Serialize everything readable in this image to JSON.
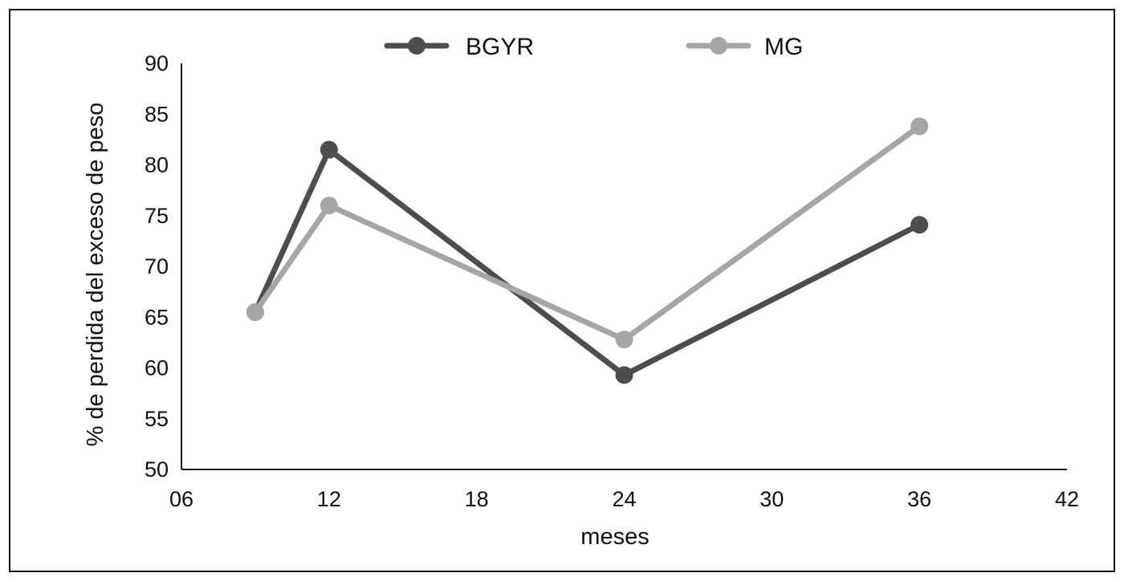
{
  "chart_data": {
    "type": "line",
    "title": "",
    "xlabel": "meses",
    "ylabel": "% de perdida del exceso de peso",
    "xlim": [
      6,
      42
    ],
    "ylim": [
      50,
      90
    ],
    "x_ticks": [
      6,
      12,
      18,
      24,
      30,
      36,
      42
    ],
    "x_tick_labels": [
      "06",
      "12",
      "18",
      "24",
      "30",
      "36",
      "42"
    ],
    "y_ticks": [
      50,
      55,
      60,
      65,
      70,
      75,
      80,
      85,
      90
    ],
    "y_tick_labels": [
      "50",
      "55",
      "60",
      "65",
      "70",
      "75",
      "80",
      "85",
      "90"
    ],
    "legend_position": "top-center",
    "grid": false,
    "series": [
      {
        "name": "BGYR",
        "color": "#4d4d4d",
        "x": [
          9,
          12,
          24,
          36
        ],
        "values": [
          65.5,
          81.5,
          59.3,
          74.1
        ]
      },
      {
        "name": "MG",
        "color": "#a6a6a6",
        "x": [
          9,
          12,
          24,
          36
        ],
        "values": [
          65.5,
          76.0,
          62.8,
          83.8
        ]
      }
    ]
  }
}
